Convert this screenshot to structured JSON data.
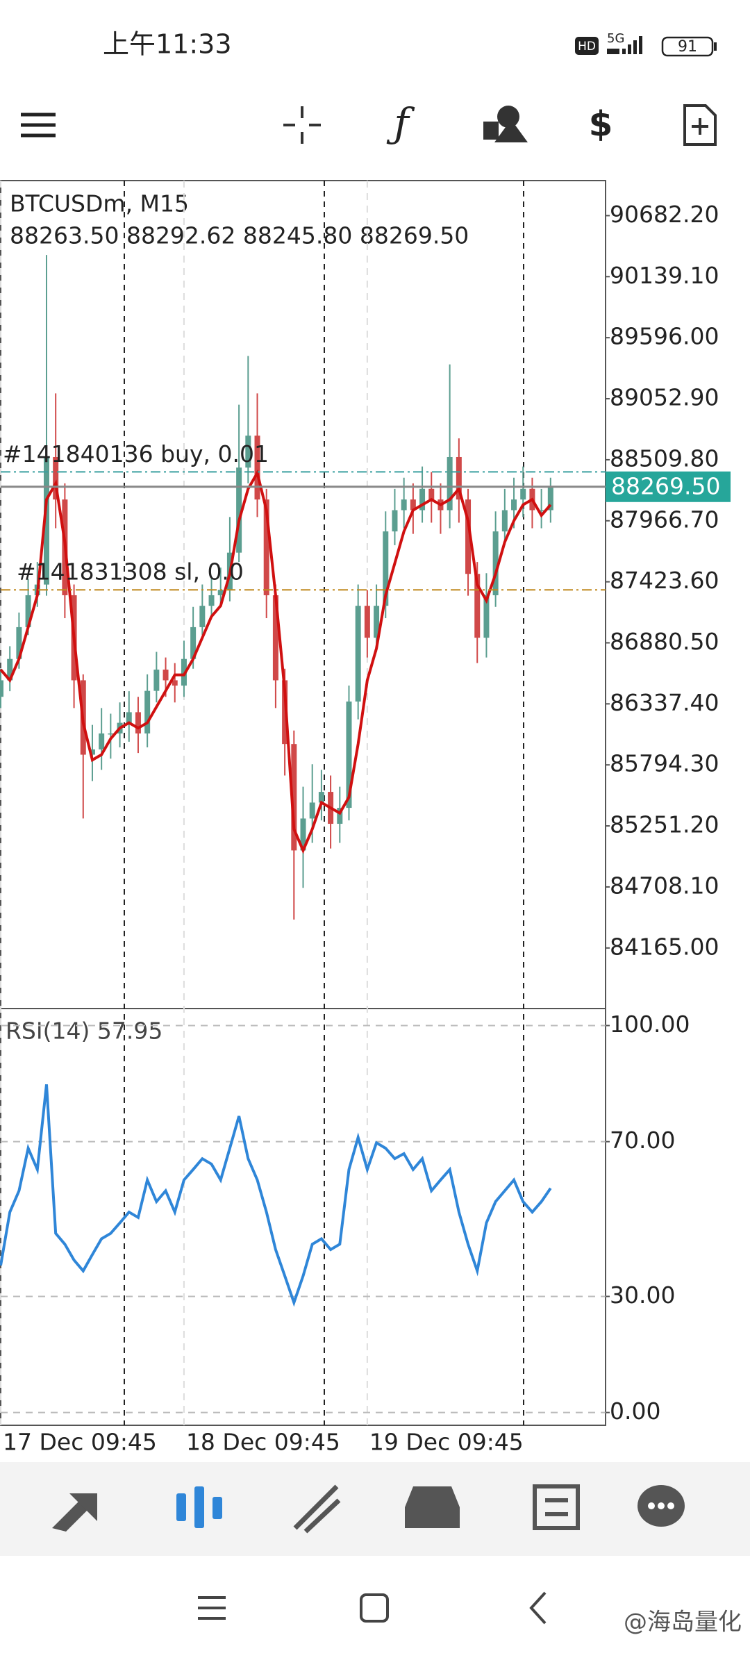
{
  "status_bar": {
    "time": "上午11:33",
    "hd": "HD",
    "network": "5G",
    "battery": "91"
  },
  "chart_data": [
    {
      "type": "candlestick",
      "title": "BTCUSDm, M15",
      "subtitle": "88263.50 88292.62 88245.80 88269.50",
      "xlim": [
        0,
        66
      ],
      "xticks": [
        {
          "value": 0,
          "label": "17 Dec 09:45"
        },
        {
          "value": 20,
          "label": "18 Dec 09:45"
        },
        {
          "value": 40,
          "label": "19 Dec 09:45"
        }
      ],
      "ylim": [
        83626,
        90994
      ],
      "yticks": [
        {
          "value": 90682.2,
          "label": "90682.20"
        },
        {
          "value": 90139.1,
          "label": "90139.10"
        },
        {
          "value": 89596,
          "label": "89596.00"
        },
        {
          "value": 89052.9,
          "label": "89052.90"
        },
        {
          "value": 88509.8,
          "label": "88509.80"
        },
        {
          "value": 87966.7,
          "label": "87966.70"
        },
        {
          "value": 87423.6,
          "label": "87423.60"
        },
        {
          "value": 86880.5,
          "label": "86880.50"
        },
        {
          "value": 86337.4,
          "label": "86337.40"
        },
        {
          "value": 85794.3,
          "label": "85794.30"
        },
        {
          "value": 85251.2,
          "label": "85251.20"
        },
        {
          "value": 84708.1,
          "label": "84708.10"
        },
        {
          "value": 84165,
          "label": "84165.00"
        }
      ],
      "up_color": "#5b9e90",
      "down_color": "#d04848",
      "open": [
        86400,
        86547,
        86737,
        87020,
        87304,
        87399,
        88534,
        88156,
        87304,
        86547,
        85885,
        85932,
        86074,
        86074,
        86169,
        86263,
        86074,
        86453,
        86642,
        86547,
        86500,
        86737,
        87020,
        87210,
        87304,
        87352,
        87683,
        88440,
        88724,
        88156,
        87304,
        86547,
        85980,
        85033,
        85317,
        85459,
        85554,
        85270,
        85412,
        86358,
        87210,
        86926,
        87210,
        87872,
        88061,
        88156,
        88061,
        88251,
        88156,
        88061,
        88534,
        88156,
        87494,
        86926,
        87304,
        87872,
        88061,
        88156,
        88251,
        88061,
        88061
      ],
      "high": [
        86650,
        86850,
        87150,
        87450,
        87600,
        90332,
        89100,
        88300,
        87400,
        86600,
        86150,
        86300,
        86250,
        86350,
        86450,
        86400,
        86600,
        86800,
        86750,
        86700,
        86900,
        87200,
        87400,
        87450,
        87550,
        88000,
        89000,
        89433,
        89100,
        88250,
        87400,
        86650,
        86100,
        85600,
        85800,
        85750,
        85700,
        85600,
        86500,
        87400,
        87350,
        87400,
        88050,
        88250,
        88350,
        88300,
        88450,
        88400,
        88300,
        89358,
        88700,
        88250,
        87600,
        87500,
        88050,
        88250,
        88350,
        88450,
        88350,
        88250,
        88350
      ],
      "low": [
        86300,
        86450,
        86650,
        86950,
        87200,
        87300,
        87900,
        87100,
        86300,
        85317,
        85650,
        85750,
        85850,
        85950,
        86000,
        85900,
        85950,
        86350,
        86400,
        86350,
        86400,
        86650,
        86950,
        87100,
        87200,
        87250,
        87600,
        88300,
        88000,
        87100,
        86300,
        85700,
        84418,
        84700,
        85100,
        85300,
        85050,
        85100,
        85300,
        86200,
        86750,
        86800,
        87100,
        87750,
        87900,
        87850,
        87950,
        87950,
        87850,
        87900,
        87950,
        87300,
        86700,
        86750,
        87200,
        87750,
        87900,
        88000,
        87900,
        87900,
        87950
      ],
      "close": [
        86547,
        86737,
        87020,
        87304,
        87399,
        88534,
        88156,
        87304,
        86547,
        85885,
        85932,
        86074,
        86074,
        86169,
        86263,
        86074,
        86453,
        86642,
        86547,
        86500,
        86737,
        87020,
        87210,
        87304,
        87352,
        87683,
        88440,
        88724,
        88156,
        87304,
        86547,
        85980,
        85033,
        85317,
        85459,
        85554,
        85270,
        85412,
        86358,
        87210,
        86926,
        87210,
        87872,
        88061,
        88156,
        88061,
        88251,
        88156,
        88061,
        88534,
        88156,
        87494,
        86926,
        87304,
        87872,
        88061,
        88156,
        88251,
        88061,
        88061,
        88269.5
      ],
      "ma": {
        "color": "#d01010",
        "values": [
          86642,
          86547,
          86737,
          87020,
          87304,
          88156,
          88298,
          87777,
          86926,
          86169,
          85838,
          85885,
          86027,
          86122,
          86169,
          86122,
          86169,
          86311,
          86453,
          86595,
          86595,
          86737,
          86926,
          87115,
          87210,
          87494,
          87967,
          88251,
          88392,
          88061,
          87304,
          86453,
          85223,
          85033,
          85223,
          85459,
          85412,
          85365,
          85507,
          85980,
          86547,
          86831,
          87304,
          87588,
          87872,
          88061,
          88109,
          88156,
          88109,
          88156,
          88251,
          87967,
          87399,
          87257,
          87494,
          87777,
          87967,
          88109,
          88156,
          88014,
          88109
        ]
      },
      "current_price": {
        "value": 88269.5,
        "label": "88269.50",
        "color": "#26a69a"
      },
      "order_lines": [
        {
          "label": "#141840136 buy, 0.01",
          "value": 88402,
          "color": "#3aa0a0"
        },
        {
          "label": "#141831308 sl, 0.0",
          "value": 87352,
          "color": "#c08a20"
        }
      ]
    },
    {
      "type": "line",
      "title": "RSI(14) 57.95",
      "xlim": [
        0,
        66
      ],
      "ylim": [
        -3.3,
        104.4
      ],
      "yticks": [
        {
          "value": 100,
          "label": "100.00"
        },
        {
          "value": 70,
          "label": "70.00"
        },
        {
          "value": 30,
          "label": "30.00"
        },
        {
          "value": 0,
          "label": "0.00"
        }
      ],
      "grid": true,
      "series": [
        {
          "color": "#2f86d8",
          "values": [
            38.0,
            51.8,
            57.3,
            68.3,
            62.8,
            84.8,
            46.3,
            43.5,
            39.4,
            36.6,
            40.8,
            44.9,
            46.3,
            49.0,
            51.8,
            50.4,
            60.1,
            54.5,
            57.3,
            51.8,
            60.1,
            62.8,
            65.6,
            64.2,
            60.1,
            68.3,
            76.6,
            65.6,
            60.1,
            51.8,
            42.1,
            35.3,
            28.4,
            35.3,
            43.5,
            44.9,
            42.1,
            43.5,
            62.8,
            71.1,
            62.8,
            69.7,
            68.3,
            65.6,
            66.9,
            62.8,
            65.6,
            57.3,
            60.1,
            62.8,
            51.8,
            43.5,
            36.6,
            49.0,
            54.5,
            57.3,
            60.1,
            54.5,
            51.8,
            54.5,
            57.95
          ]
        }
      ]
    }
  ],
  "watermark": "@海岛量化"
}
